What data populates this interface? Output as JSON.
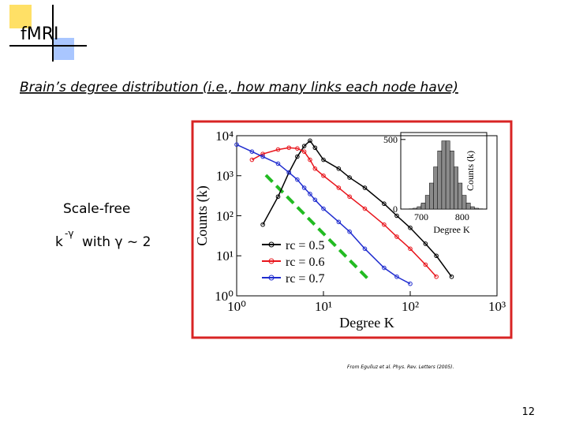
{
  "slide": {
    "title": "fMRI",
    "subtitle": "Brain’s degree distribution (i.e., how many links each node have)",
    "note": "Scale-free",
    "formula": {
      "base": "k",
      "exponent": "-γ",
      "rest": "with γ ~ 2"
    },
    "citation": "From Eguíluz et al. Phys. Rev. Letters (2005).",
    "page_number": "12"
  },
  "chart_data": [
    {
      "type": "line",
      "x_label": "Degree K",
      "y_label": "Counts (k)",
      "log_x": true,
      "log_y": true,
      "xlim": [
        1,
        1000
      ],
      "ylim": [
        1,
        10000
      ],
      "xticks": [
        {
          "value": 1,
          "label": "10⁰"
        },
        {
          "value": 10,
          "label": "10¹"
        },
        {
          "value": 100,
          "label": "10²"
        },
        {
          "value": 1000,
          "label": "10³"
        }
      ],
      "yticks": [
        {
          "value": 1,
          "label": "10⁰"
        },
        {
          "value": 10,
          "label": "10¹"
        },
        {
          "value": 100,
          "label": "10²"
        },
        {
          "value": 1000,
          "label": "10³"
        },
        {
          "value": 10000,
          "label": "10⁴"
        }
      ],
      "x": [
        1,
        1.5,
        2,
        3,
        4,
        5,
        6,
        7,
        8,
        10,
        15,
        20,
        30,
        50,
        70,
        100,
        150,
        200,
        300
      ],
      "series": [
        {
          "name": "rc = 0.5",
          "color": "#000000",
          "values": [
            null,
            null,
            60,
            300,
            1200,
            3000,
            5500,
            7500,
            5000,
            2500,
            1500,
            900,
            500,
            200,
            100,
            50,
            20,
            10,
            3
          ]
        },
        {
          "name": "rc = 0.6",
          "color": "#e8141b",
          "values": [
            null,
            2500,
            3500,
            4500,
            5000,
            4800,
            4000,
            2500,
            1500,
            1000,
            500,
            300,
            150,
            60,
            30,
            15,
            6,
            3,
            null
          ]
        },
        {
          "name": "rc = 0.7",
          "color": "#1f2ccf",
          "values": [
            6000,
            4000,
            3000,
            2000,
            1200,
            800,
            500,
            350,
            250,
            150,
            70,
            40,
            15,
            5,
            3,
            2,
            null,
            null,
            null
          ]
        }
      ]
    },
    {
      "type": "histogram",
      "x_label": "Degree K",
      "y_label": "Counts (k)",
      "color": "#8a8a8a",
      "xlim": [
        650,
        860
      ],
      "ylim": [
        0,
        550
      ],
      "xticks": [
        700,
        800
      ],
      "yticks": [
        0,
        500
      ],
      "bins": [
        660,
        670,
        680,
        690,
        700,
        710,
        720,
        730,
        740,
        750,
        760,
        770,
        780,
        790,
        800,
        810,
        820,
        830,
        840,
        850,
        860
      ],
      "values": [
        0,
        2,
        6,
        17,
        44,
        99,
        187,
        303,
        418,
        490,
        490,
        418,
        303,
        187,
        99,
        44,
        17,
        6,
        2,
        0
      ]
    }
  ]
}
